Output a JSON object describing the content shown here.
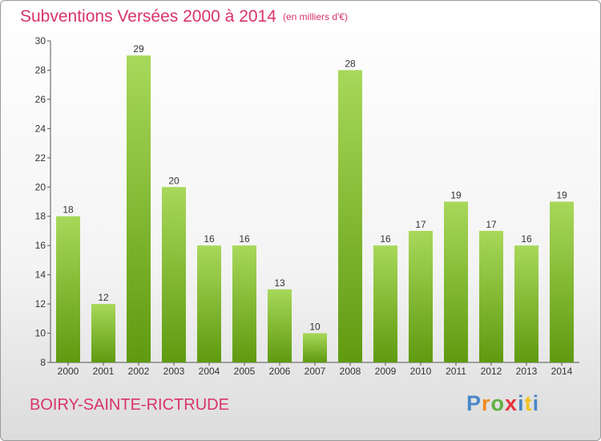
{
  "header": {
    "title": "Subventions Versées 2000 à 2014",
    "subtitle": "(en milliers d'€)"
  },
  "footer": {
    "place": "BOIRY-SAINTE-RICTRUDE",
    "brand": [
      "P",
      "r",
      "o",
      "x",
      "i",
      "t",
      "i"
    ]
  },
  "colors": {
    "accent": "#d9336a",
    "bar_top": "#a8d85a",
    "bar_bottom": "#5f9a10"
  },
  "chart_data": {
    "type": "bar",
    "title": "Subventions Versées 2000 à 2014",
    "subtitle": "(en milliers d'€)",
    "xlabel": "",
    "ylabel": "",
    "categories": [
      "2000",
      "2001",
      "2002",
      "2003",
      "2004",
      "2005",
      "2006",
      "2007",
      "2008",
      "2009",
      "2010",
      "2011",
      "2012",
      "2013",
      "2014"
    ],
    "values": [
      18,
      12,
      29,
      20,
      16,
      16,
      13,
      10,
      28,
      16,
      17,
      19,
      17,
      16,
      19
    ],
    "ylim": [
      8,
      30
    ],
    "yticks": [
      8,
      10,
      12,
      14,
      16,
      18,
      20,
      22,
      24,
      26,
      28,
      30
    ],
    "grid": false,
    "legend": "none"
  }
}
